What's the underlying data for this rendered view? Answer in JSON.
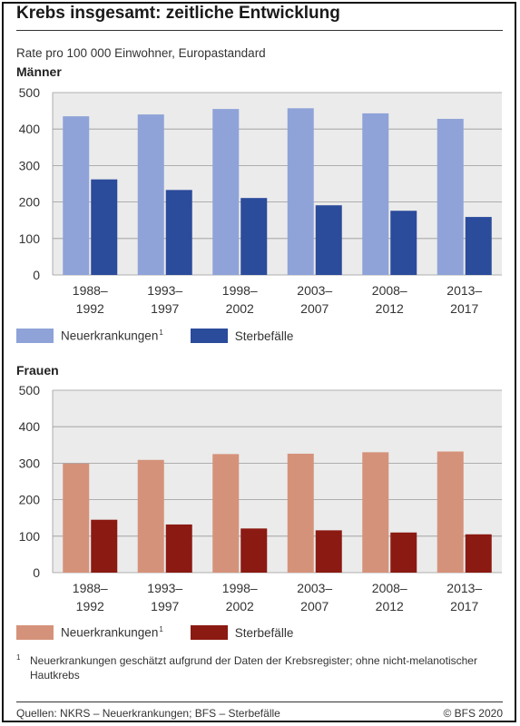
{
  "title": "Krebs insgesamt: zeitliche Entwicklung",
  "subtitle": "Rate pro 100 000 Einwohner, Europastandard",
  "footnote": {
    "marker": "1",
    "text": "Neuerkrankungen geschätzt aufgrund der Daten der Krebsregister; ohne nicht-melanotischer Hautkrebs"
  },
  "source": "Quellen: NKRS – Neuerkrankungen; BFS – Sterbefälle",
  "copyright": "© BFS 2020",
  "chart_data": [
    {
      "type": "bar",
      "title": "Männer",
      "categories": [
        [
          "1988–",
          "1992"
        ],
        [
          "1993–",
          "1997"
        ],
        [
          "1998–",
          "2002"
        ],
        [
          "2003–",
          "2007"
        ],
        [
          "2008–",
          "2012"
        ],
        [
          "2013–",
          "2017"
        ]
      ],
      "series": [
        {
          "name": "Neuerkrankungen",
          "name_sup": "1",
          "color": "#8fa3d8",
          "values": [
            435,
            440,
            455,
            457,
            443,
            428
          ]
        },
        {
          "name": "Sterbefälle",
          "color": "#2b4b9b",
          "values": [
            262,
            233,
            211,
            191,
            176,
            159
          ]
        }
      ],
      "ylim": [
        0,
        500
      ],
      "yticks": [
        0,
        100,
        200,
        300,
        400,
        500
      ],
      "grid": true,
      "background": "#ebebeb",
      "legend": "bottom-left"
    },
    {
      "type": "bar",
      "title": "Frauen",
      "categories": [
        [
          "1988–",
          "1992"
        ],
        [
          "1993–",
          "1997"
        ],
        [
          "1998–",
          "2002"
        ],
        [
          "2003–",
          "2007"
        ],
        [
          "2008–",
          "2012"
        ],
        [
          "2013–",
          "2017"
        ]
      ],
      "series": [
        {
          "name": "Neuerkrankungen",
          "name_sup": "1",
          "color": "#d5927a",
          "values": [
            299,
            309,
            325,
            326,
            330,
            332
          ]
        },
        {
          "name": "Sterbefälle",
          "color": "#8b1a12",
          "values": [
            145,
            132,
            121,
            116,
            110,
            105
          ]
        }
      ],
      "ylim": [
        0,
        500
      ],
      "yticks": [
        0,
        100,
        200,
        300,
        400,
        500
      ],
      "grid": true,
      "background": "#ebebeb",
      "legend": "bottom-left"
    }
  ]
}
